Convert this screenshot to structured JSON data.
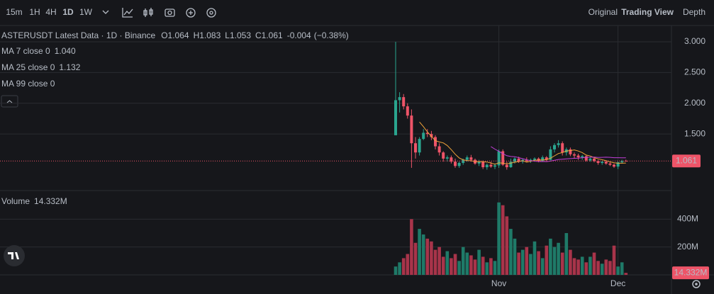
{
  "toolbar": {
    "intervals": [
      "15m",
      "1H",
      "4H",
      "1D",
      "1W"
    ],
    "views": [
      "Original",
      "Trading View",
      "Depth"
    ]
  },
  "legend": {
    "title": "ASTERUSDT Latest Data · 1D · Binance",
    "ohlc": [
      {
        "key": "O",
        "value": 1.064
      },
      {
        "key": "H",
        "value": 1.083
      },
      {
        "key": "L",
        "value": 1.053
      },
      {
        "key": "C",
        "value": 1.061
      }
    ],
    "change": -0.004,
    "change_pct": "(−0.38%)",
    "indicators": [
      {
        "name": "MA 7 close 0",
        "value": "1.040",
        "period": 7,
        "color": "#f0a43a"
      },
      {
        "name": "MA 25 close 0",
        "value": "1.132",
        "period": 25,
        "color": "#c23fd8"
      },
      {
        "name": "MA 99 close 0"
      }
    ],
    "volume": {
      "name": "Volume",
      "value": 14332000,
      "value_label": "14.332M"
    }
  },
  "chart_data": [
    {
      "type": "candlestick",
      "up_color": "#2aa58f",
      "down_color": "#ee5468",
      "categories": [
        null,
        null,
        null,
        null,
        null,
        null,
        null,
        null,
        null,
        null,
        null,
        null,
        null,
        null,
        null,
        null,
        null,
        null,
        null,
        null,
        null,
        null,
        null,
        null,
        null,
        null,
        "Nov",
        null,
        null,
        null,
        null,
        null,
        null,
        null,
        null,
        null,
        null,
        null,
        null,
        null,
        null,
        null,
        null,
        null,
        null,
        null,
        null,
        null,
        null,
        null,
        null,
        null,
        null,
        null,
        null,
        null,
        "Dec",
        null,
        null
      ],
      "open": [
        1.48,
        2.05,
        2.1,
        1.95,
        1.8,
        1.35,
        1.2,
        1.42,
        1.52,
        1.5,
        1.45,
        1.3,
        1.2,
        1.1,
        1.12,
        1.05,
        0.98,
        1.03,
        1.08,
        1.12,
        1.08,
        1.02,
        1.05,
        0.96,
        1.0,
        0.97,
        0.99,
        1.22,
        1.0,
        0.96,
        1.05,
        1.1,
        1.05,
        1.08,
        1.06,
        1.08,
        1.1,
        1.06,
        1.12,
        1.08,
        1.25,
        1.32,
        1.35,
        1.2,
        1.25,
        1.17,
        1.15,
        1.12,
        1.14,
        1.07,
        1.1,
        1.06,
        1.03,
        1.05,
        1.02,
        1.0,
        0.97,
        1.04,
        1.064
      ],
      "high": [
        3.0,
        2.18,
        2.15,
        2.0,
        1.9,
        1.45,
        1.45,
        1.58,
        1.58,
        1.55,
        1.48,
        1.35,
        1.22,
        1.15,
        1.15,
        1.1,
        1.05,
        1.1,
        1.15,
        1.16,
        1.1,
        1.08,
        1.07,
        1.02,
        1.05,
        1.02,
        1.25,
        1.25,
        1.05,
        1.1,
        1.12,
        1.13,
        1.1,
        1.12,
        1.1,
        1.12,
        1.12,
        1.15,
        1.14,
        1.3,
        1.35,
        1.4,
        1.38,
        1.28,
        1.28,
        1.2,
        1.18,
        1.16,
        1.15,
        1.12,
        1.12,
        1.08,
        1.06,
        1.07,
        1.04,
        1.02,
        1.05,
        1.08,
        1.083
      ],
      "low": [
        1.48,
        1.85,
        1.9,
        1.75,
        0.95,
        1.1,
        1.15,
        1.4,
        1.45,
        1.4,
        1.25,
        1.15,
        1.05,
        1.05,
        1.02,
        0.95,
        0.95,
        1.0,
        1.05,
        1.05,
        1.0,
        0.98,
        0.93,
        0.92,
        0.95,
        0.93,
        0.95,
        0.98,
        0.92,
        0.95,
        1.02,
        1.03,
        1.02,
        1.04,
        1.03,
        1.05,
        1.04,
        1.05,
        1.06,
        1.07,
        1.2,
        1.28,
        1.15,
        1.15,
        1.14,
        1.1,
        1.08,
        1.08,
        1.05,
        1.05,
        1.04,
        1.0,
        1.0,
        1.0,
        0.98,
        0.95,
        0.93,
        1.02,
        1.053
      ],
      "close": [
        2.05,
        2.1,
        1.95,
        1.8,
        1.35,
        1.2,
        1.42,
        1.52,
        1.5,
        1.45,
        1.3,
        1.2,
        1.1,
        1.12,
        1.05,
        0.98,
        1.03,
        1.08,
        1.12,
        1.08,
        1.02,
        1.05,
        0.96,
        1.0,
        0.97,
        0.99,
        1.22,
        1.0,
        0.96,
        1.05,
        1.1,
        1.05,
        1.08,
        1.06,
        1.08,
        1.1,
        1.06,
        1.12,
        1.08,
        1.25,
        1.32,
        1.35,
        1.2,
        1.25,
        1.17,
        1.15,
        1.12,
        1.14,
        1.07,
        1.1,
        1.06,
        1.03,
        1.05,
        1.02,
        1.0,
        0.97,
        1.04,
        1.06,
        1.061
      ],
      "ylim": [
        0.58,
        3.265
      ],
      "yticks": [
        {
          "value": 1.5,
          "label": "1.500"
        },
        {
          "value": 2,
          "label": "2.000"
        },
        {
          "value": 2.5,
          "label": "2.500"
        },
        {
          "value": 3,
          "label": "3.000"
        }
      ],
      "grid": true
    },
    {
      "type": "bar",
      "values": [
        60000000,
        90000000,
        120000000,
        150000000,
        400000000,
        230000000,
        330000000,
        290000000,
        260000000,
        240000000,
        180000000,
        200000000,
        130000000,
        170000000,
        120000000,
        150000000,
        100000000,
        200000000,
        160000000,
        140000000,
        110000000,
        180000000,
        130000000,
        90000000,
        120000000,
        100000000,
        520000000,
        500000000,
        420000000,
        330000000,
        260000000,
        160000000,
        180000000,
        200000000,
        150000000,
        240000000,
        170000000,
        120000000,
        210000000,
        260000000,
        200000000,
        230000000,
        160000000,
        300000000,
        180000000,
        120000000,
        110000000,
        130000000,
        90000000,
        130000000,
        160000000,
        100000000,
        80000000,
        110000000,
        100000000,
        210000000,
        60000000,
        90000000,
        14332000
      ],
      "ylim": [
        0,
        600000000
      ],
      "yticks": [
        {
          "value": 200000000,
          "label": "200M"
        },
        {
          "value": 400000000,
          "label": "400M"
        }
      ],
      "grid": true
    }
  ]
}
